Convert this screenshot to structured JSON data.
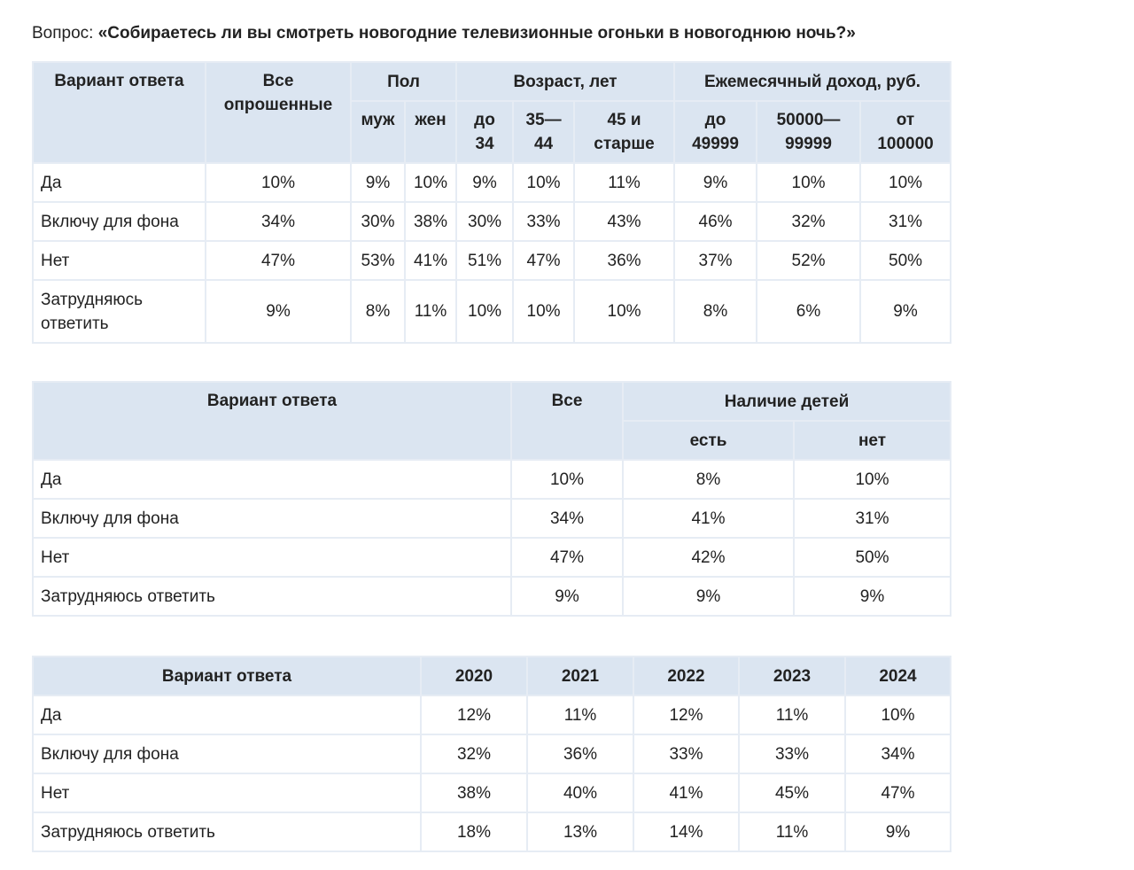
{
  "question": {
    "prefix": "Вопрос: ",
    "text": "«Собираетесь ли вы смотреть новогодние телевизионные огоньки в новогоднюю ночь?»"
  },
  "table1": {
    "header": {
      "answer": "Вариант ответа",
      "all": "Все опрошенные",
      "gender": "Пол",
      "age": "Возраст, лет",
      "income": "Ежемесячный доход, руб.",
      "male": "муж",
      "female": "жен",
      "age_1": "до 34",
      "age_2": "35—44",
      "age_3": "45 и старше",
      "income_1": "до 49999",
      "income_2": "50000—99999",
      "income_3": "от 100000"
    },
    "rows": [
      {
        "label": "Да",
        "values": [
          "10%",
          "9%",
          "10%",
          "9%",
          "10%",
          "11%",
          "9%",
          "10%",
          "10%"
        ]
      },
      {
        "label": "Включу для фона",
        "values": [
          "34%",
          "30%",
          "38%",
          "30%",
          "33%",
          "43%",
          "46%",
          "32%",
          "31%"
        ]
      },
      {
        "label": "Нет",
        "values": [
          "47%",
          "53%",
          "41%",
          "51%",
          "47%",
          "36%",
          "37%",
          "52%",
          "50%"
        ]
      },
      {
        "label": "Затрудняюсь ответить",
        "values": [
          "9%",
          "8%",
          "11%",
          "10%",
          "10%",
          "10%",
          "8%",
          "6%",
          "9%"
        ]
      }
    ]
  },
  "table2": {
    "header": {
      "answer": "Вариант ответа",
      "all": "Все",
      "children": "Наличие детей",
      "yes": "есть",
      "no": "нет"
    },
    "rows": [
      {
        "label": "Да",
        "values": [
          "10%",
          "8%",
          "10%"
        ]
      },
      {
        "label": "Включу для фона",
        "values": [
          "34%",
          "41%",
          "31%"
        ]
      },
      {
        "label": "Нет",
        "values": [
          "47%",
          "42%",
          "50%"
        ]
      },
      {
        "label": "Затрудняюсь ответить",
        "values": [
          "9%",
          "9%",
          "9%"
        ]
      }
    ]
  },
  "table3": {
    "header": {
      "answer": "Вариант ответа",
      "years": [
        "2020",
        "2021",
        "2022",
        "2023",
        "2024"
      ]
    },
    "rows": [
      {
        "label": "Да",
        "values": [
          "12%",
          "11%",
          "12%",
          "11%",
          "10%"
        ]
      },
      {
        "label": "Включу для фона",
        "values": [
          "32%",
          "36%",
          "33%",
          "33%",
          "34%"
        ]
      },
      {
        "label": "Нет",
        "values": [
          "38%",
          "40%",
          "41%",
          "45%",
          "47%"
        ]
      },
      {
        "label": "Затрудняюсь ответить",
        "values": [
          "18%",
          "13%",
          "14%",
          "11%",
          "9%"
        ]
      }
    ]
  }
}
